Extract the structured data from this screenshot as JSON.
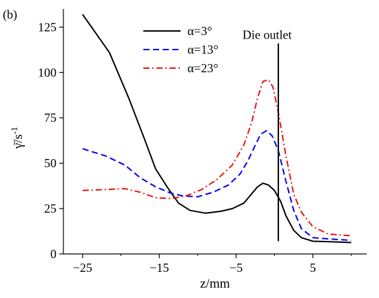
{
  "chart_data": {
    "type": "line",
    "panel_label": "(b)",
    "xlabel": "z/mm",
    "ylabel": "γ̄/s",
    "ylabel_superscript": "-1",
    "xlim": [
      -27.5,
      12
    ],
    "ylim": [
      0,
      135
    ],
    "x_ticks": [
      -25,
      -15,
      -5,
      5
    ],
    "x_tick_labels": [
      "−25",
      "−15",
      "−5",
      "5"
    ],
    "y_ticks": [
      0,
      25,
      50,
      75,
      100,
      125
    ],
    "y_tick_labels": [
      "0",
      "25",
      "50",
      "75",
      "100",
      "125"
    ],
    "grid": false,
    "legend_position": "top-center",
    "annotation": {
      "text": "Die outlet",
      "x": 0.5
    },
    "series": [
      {
        "name": "α=3°",
        "color": "#000000",
        "style": "solid",
        "points": [
          [
            -25,
            132
          ],
          [
            -23,
            120
          ],
          [
            -21.5,
            111
          ],
          [
            -19,
            86
          ],
          [
            -17,
            64
          ],
          [
            -15.5,
            47
          ],
          [
            -14,
            37
          ],
          [
            -12.5,
            28
          ],
          [
            -11,
            24
          ],
          [
            -9,
            22.5
          ],
          [
            -7,
            23.5
          ],
          [
            -5.5,
            25
          ],
          [
            -4,
            28
          ],
          [
            -3,
            33
          ],
          [
            -2.2,
            37
          ],
          [
            -1.5,
            39
          ],
          [
            -0.8,
            38
          ],
          [
            0,
            35
          ],
          [
            0.8,
            29
          ],
          [
            1.5,
            21
          ],
          [
            2.5,
            13
          ],
          [
            3.5,
            9
          ],
          [
            5,
            7
          ],
          [
            7,
            6.8
          ],
          [
            10,
            6.3
          ]
        ]
      },
      {
        "name": "α=13°",
        "color": "#0000ee",
        "style": "dashed",
        "points": [
          [
            -25,
            58
          ],
          [
            -22,
            54
          ],
          [
            -19.5,
            49
          ],
          [
            -17.5,
            42
          ],
          [
            -15.5,
            37
          ],
          [
            -13.5,
            33.5
          ],
          [
            -12,
            32
          ],
          [
            -10,
            31.5
          ],
          [
            -8,
            34
          ],
          [
            -6,
            38
          ],
          [
            -4.5,
            44
          ],
          [
            -3.5,
            51
          ],
          [
            -2.5,
            60
          ],
          [
            -1.8,
            66
          ],
          [
            -1,
            68
          ],
          [
            -0.3,
            65
          ],
          [
            0.5,
            57
          ],
          [
            1.5,
            40
          ],
          [
            2.5,
            24
          ],
          [
            3.5,
            14
          ],
          [
            5,
            9
          ],
          [
            7,
            8.3
          ],
          [
            10,
            7.5
          ]
        ]
      },
      {
        "name": "α=23°",
        "color": "#ee1111",
        "style": "dashdot",
        "points": [
          [
            -25,
            35
          ],
          [
            -22,
            35.5
          ],
          [
            -19.5,
            36
          ],
          [
            -17.5,
            34
          ],
          [
            -15.5,
            31
          ],
          [
            -13.5,
            30.5
          ],
          [
            -11.5,
            32
          ],
          [
            -9.5,
            35.5
          ],
          [
            -7.5,
            41
          ],
          [
            -5.5,
            49
          ],
          [
            -4,
            60
          ],
          [
            -3,
            72
          ],
          [
            -2.2,
            86
          ],
          [
            -1.5,
            95
          ],
          [
            -0.8,
            96
          ],
          [
            -0.2,
            92
          ],
          [
            0.5,
            78
          ],
          [
            1.5,
            54
          ],
          [
            2.5,
            33
          ],
          [
            3.5,
            23
          ],
          [
            5,
            15
          ],
          [
            7,
            11
          ],
          [
            10,
            10
          ]
        ]
      }
    ]
  }
}
